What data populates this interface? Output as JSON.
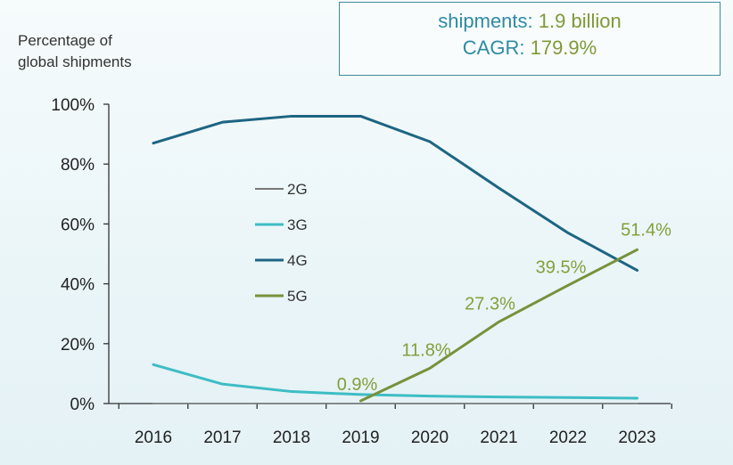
{
  "y_axis_title_line1": "Percentage of",
  "y_axis_title_line2": "global shipments",
  "info": {
    "line1_label": "shipments:",
    "line1_value": "1.9 billion",
    "line2_label": "CAGR:",
    "line2_value": "179.9%"
  },
  "colors": {
    "2G": "#777777",
    "3G": "#3dbdc4",
    "4G": "#1d6582",
    "5G": "#76923b",
    "label_5G": "#82a03a",
    "axis": "#333333"
  },
  "chart_data": {
    "type": "line",
    "title": "",
    "xlabel": "",
    "ylabel": "Percentage of global shipments",
    "categories": [
      "2016",
      "2017",
      "2018",
      "2019",
      "2020",
      "2021",
      "2022",
      "2023"
    ],
    "ylim": [
      0,
      100
    ],
    "yticks": [
      "0%",
      "20%",
      "40%",
      "60%",
      "80%",
      "100%"
    ],
    "ytick_values": [
      0,
      20,
      40,
      60,
      80,
      100
    ],
    "series": [
      {
        "name": "2G",
        "x": [
          "2016",
          "2017",
          "2018",
          "2019",
          "2020",
          "2021",
          "2022",
          "2023"
        ],
        "values": [
          0,
          0,
          0,
          0,
          0,
          0,
          0,
          0
        ]
      },
      {
        "name": "3G",
        "x": [
          "2016",
          "2017",
          "2018",
          "2019",
          "2020",
          "2021",
          "2022",
          "2023"
        ],
        "values": [
          13,
          6.5,
          4,
          3,
          2.5,
          2.2,
          2,
          1.8
        ]
      },
      {
        "name": "4G",
        "x": [
          "2016",
          "2017",
          "2018",
          "2019",
          "2020",
          "2021",
          "2022",
          "2023"
        ],
        "values": [
          87,
          94,
          96,
          96,
          87.5,
          72,
          57,
          44.5
        ]
      },
      {
        "name": "5G",
        "x": [
          "2019",
          "2020",
          "2021",
          "2022",
          "2023"
        ],
        "values": [
          0.9,
          11.8,
          27.3,
          39.5,
          51.4
        ]
      }
    ],
    "data_labels": [
      {
        "series": "5G",
        "x": "2019",
        "text": "0.9%"
      },
      {
        "series": "5G",
        "x": "2020",
        "text": "11.8%"
      },
      {
        "series": "5G",
        "x": "2021",
        "text": "27.3%"
      },
      {
        "series": "5G",
        "x": "2022",
        "text": "39.5%"
      },
      {
        "series": "5G",
        "x": "2023",
        "text": "51.4%"
      }
    ],
    "legend": [
      "2G",
      "3G",
      "4G",
      "5G"
    ],
    "legend_position": "center-left"
  }
}
